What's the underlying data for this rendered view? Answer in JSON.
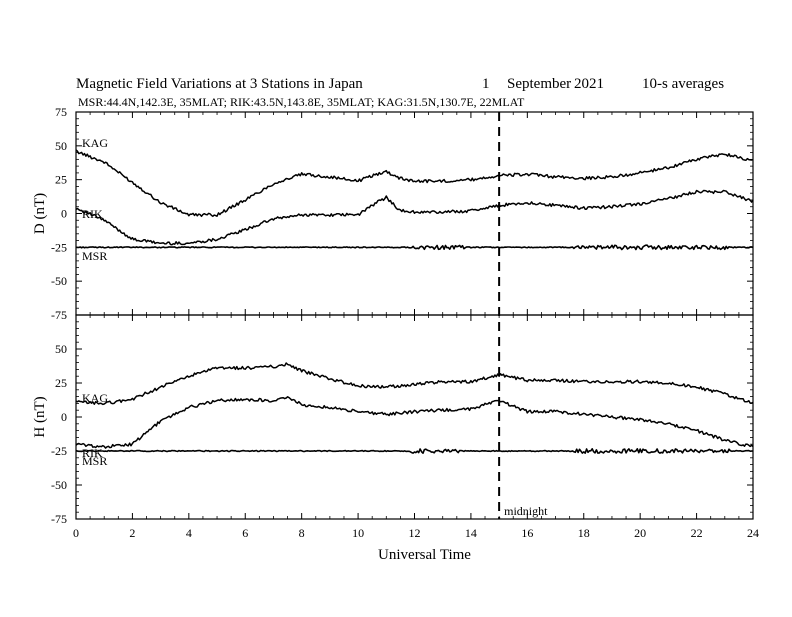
{
  "header": {
    "title": "Magnetic Field Variations at 3 Stations in Japan",
    "day": "1",
    "month": "September",
    "year": "2021",
    "averaging": "10-s averages",
    "stations": "MSR:44.4N,142.3E, 35MLAT;  RIK:43.5N,143.8E, 35MLAT;  KAG:31.5N,130.7E, 22MLAT"
  },
  "annotation": {
    "midnight_label": "midnight",
    "midnight_ut": 15
  },
  "chart_data": [
    {
      "type": "line",
      "panel": "D",
      "ylabel": "D (nT)",
      "xlabel": "",
      "xlim": [
        0,
        24
      ],
      "ylim": [
        -75,
        75
      ],
      "yticks": [
        -75,
        -50,
        -25,
        0,
        25,
        50,
        75
      ],
      "xticks": [
        0,
        2,
        4,
        6,
        8,
        10,
        12,
        14,
        16,
        18,
        20,
        22,
        24
      ],
      "x": [
        0,
        1,
        2,
        3,
        4,
        5,
        6,
        7,
        8,
        9,
        10,
        10.5,
        11,
        11.5,
        12,
        13,
        14,
        15,
        16,
        17,
        18,
        19,
        20,
        21,
        22,
        23,
        24
      ],
      "series": [
        {
          "name": "KAG",
          "color": "#000000",
          "values": [
            46,
            38,
            23,
            8,
            -1,
            -1,
            10,
            22,
            29,
            27,
            24,
            28,
            31,
            26,
            24,
            24,
            25,
            28,
            29,
            27,
            26,
            27,
            30,
            34,
            40,
            44,
            39
          ]
        },
        {
          "name": "RIK",
          "color": "#000000",
          "values": [
            4,
            -5,
            -19,
            -22,
            -22,
            -19,
            -12,
            -4,
            -1,
            -1,
            -1,
            6,
            12,
            2,
            1,
            1,
            2,
            6,
            8,
            6,
            4,
            5,
            7,
            11,
            16,
            16,
            9
          ]
        },
        {
          "name": "MSR",
          "color": "#000000",
          "values": [
            -25,
            -25,
            -25,
            -25,
            -25,
            -25,
            -25,
            -25,
            -25,
            -25,
            -25,
            -25,
            -25,
            -25,
            -25,
            -25,
            -25,
            -25,
            -25,
            -25,
            -25,
            -25,
            -25,
            -25,
            -25,
            -25,
            -25
          ]
        }
      ]
    },
    {
      "type": "line",
      "panel": "H",
      "ylabel": "H (nT)",
      "xlabel": "Universal Time",
      "xlim": [
        0,
        24
      ],
      "ylim": [
        -75,
        75
      ],
      "yticks": [
        -75,
        -50,
        -25,
        0,
        25,
        50,
        75
      ],
      "xticks": [
        0,
        2,
        4,
        6,
        8,
        10,
        12,
        14,
        16,
        18,
        20,
        22,
        24
      ],
      "x": [
        0,
        1,
        2,
        3,
        4,
        5,
        6,
        7,
        7.5,
        8,
        9,
        10,
        11,
        12,
        13,
        14,
        15,
        16,
        17,
        18,
        19,
        20,
        21,
        22,
        23,
        24
      ],
      "series": [
        {
          "name": "KAG",
          "color": "#000000",
          "values": [
            11,
            10,
            13,
            22,
            30,
            36,
            36,
            37,
            39,
            34,
            28,
            23,
            22,
            24,
            26,
            26,
            31,
            27,
            27,
            26,
            26,
            26,
            25,
            22,
            17,
            10
          ]
        },
        {
          "name": "RIK",
          "color": "#000000",
          "values": [
            -20,
            -22,
            -20,
            -3,
            7,
            12,
            13,
            12,
            15,
            9,
            7,
            4,
            2,
            4,
            5,
            6,
            12,
            4,
            4,
            2,
            0,
            -2,
            -5,
            -10,
            -17,
            -22
          ]
        },
        {
          "name": "MSR",
          "color": "#000000",
          "values": [
            -25,
            -25,
            -25,
            -25,
            -25,
            -25,
            -25,
            -25,
            -25,
            -25,
            -25,
            -25,
            -25,
            -25,
            -25,
            -25,
            -25,
            -25,
            -25,
            -25,
            -25,
            -25,
            -25,
            -25,
            -25,
            -25
          ]
        }
      ]
    }
  ]
}
